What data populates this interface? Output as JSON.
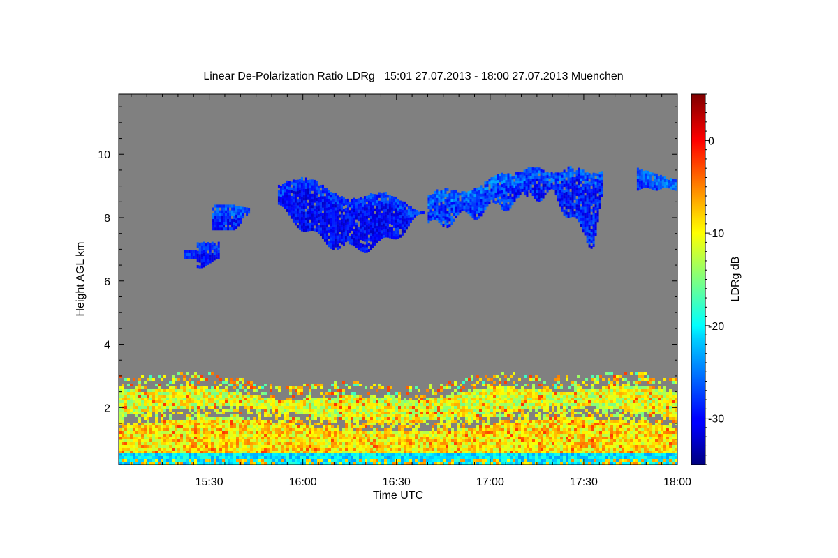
{
  "chart_data": {
    "type": "heatmap",
    "title": "Linear De-Polarization Ratio LDRg   15:01 27.07.2013 - 18:00 27.07.2013 Muenchen",
    "xlabel": "Time UTC",
    "ylabel": "Height AGL km",
    "colorbar_label": "LDRg dB",
    "xlim": [
      "15:01",
      "18:00"
    ],
    "ylim": [
      0.2,
      11.9
    ],
    "x_ticks": [
      "15:30",
      "16:00",
      "16:30",
      "17:00",
      "17:30",
      "18:00"
    ],
    "y_ticks": [
      "2",
      "4",
      "6",
      "8",
      "10"
    ],
    "colorbar_range": [
      -35,
      5
    ],
    "colorbar_ticks": [
      "0",
      "-10",
      "-20",
      "-30"
    ],
    "colormap": "jet",
    "background_color": "#808080",
    "features": {
      "boundary_layer": {
        "height_range_km": [
          0.3,
          2.8
        ],
        "ldr_db_range": [
          -22,
          -3
        ]
      },
      "surface_band": {
        "height_range_km": [
          0.3,
          0.6
        ],
        "ldr_db": -22
      },
      "cirrus_layer": {
        "time_range": [
          "15:22",
          "18:00"
        ],
        "height_range_km": [
          6.5,
          9.7
        ],
        "ldr_db_range": [
          -33,
          -26
        ]
      }
    }
  }
}
